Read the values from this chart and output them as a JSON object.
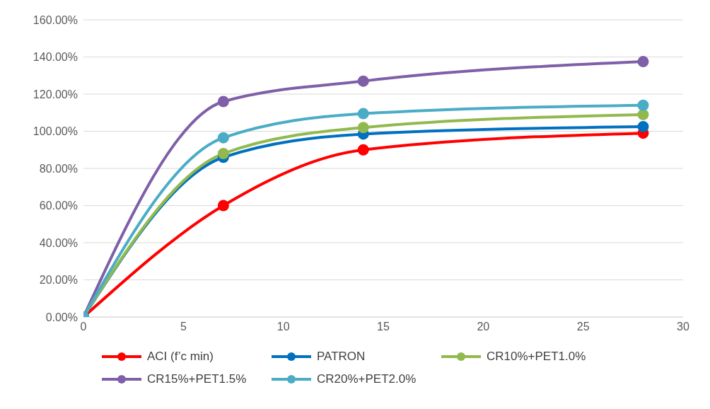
{
  "chart_data": {
    "type": "line",
    "x": [
      0,
      7,
      14,
      28
    ],
    "series": [
      {
        "name": "ACI (f’c min)",
        "color": "#ff0000",
        "values": [
          0,
          60,
          90,
          99
        ]
      },
      {
        "name": "PATRON",
        "color": "#0070c0",
        "values": [
          0,
          86,
          98.5,
          102.5
        ]
      },
      {
        "name": "CR10%+PET1.0%",
        "color": "#92b94e",
        "values": [
          0,
          88,
          102,
          109
        ]
      },
      {
        "name": "CR15%+PET1.5%",
        "color": "#7f5fa8",
        "values": [
          0,
          116,
          127,
          137.5
        ]
      },
      {
        "name": "CR20%+PET2.0%",
        "color": "#4bacc6",
        "values": [
          0,
          96.5,
          109.5,
          114
        ]
      }
    ],
    "xlim": [
      0,
      30
    ],
    "xticks": [
      0,
      5,
      10,
      15,
      20,
      25,
      30
    ],
    "ylim": [
      0,
      160
    ],
    "yticks": [
      {
        "value": 0,
        "label": "0.00%"
      },
      {
        "value": 20,
        "label": "20.00%"
      },
      {
        "value": 40,
        "label": "40.00%"
      },
      {
        "value": 60,
        "label": "60.00%"
      },
      {
        "value": 80,
        "label": "80.00%"
      },
      {
        "value": 100,
        "label": "100.00%"
      },
      {
        "value": 120,
        "label": "120.00%"
      },
      {
        "value": 140,
        "label": "140.00%"
      },
      {
        "value": 160,
        "label": "160.00%"
      }
    ],
    "grid": "y",
    "legend": "bottom",
    "marker": "circle",
    "line_style": "solid"
  }
}
